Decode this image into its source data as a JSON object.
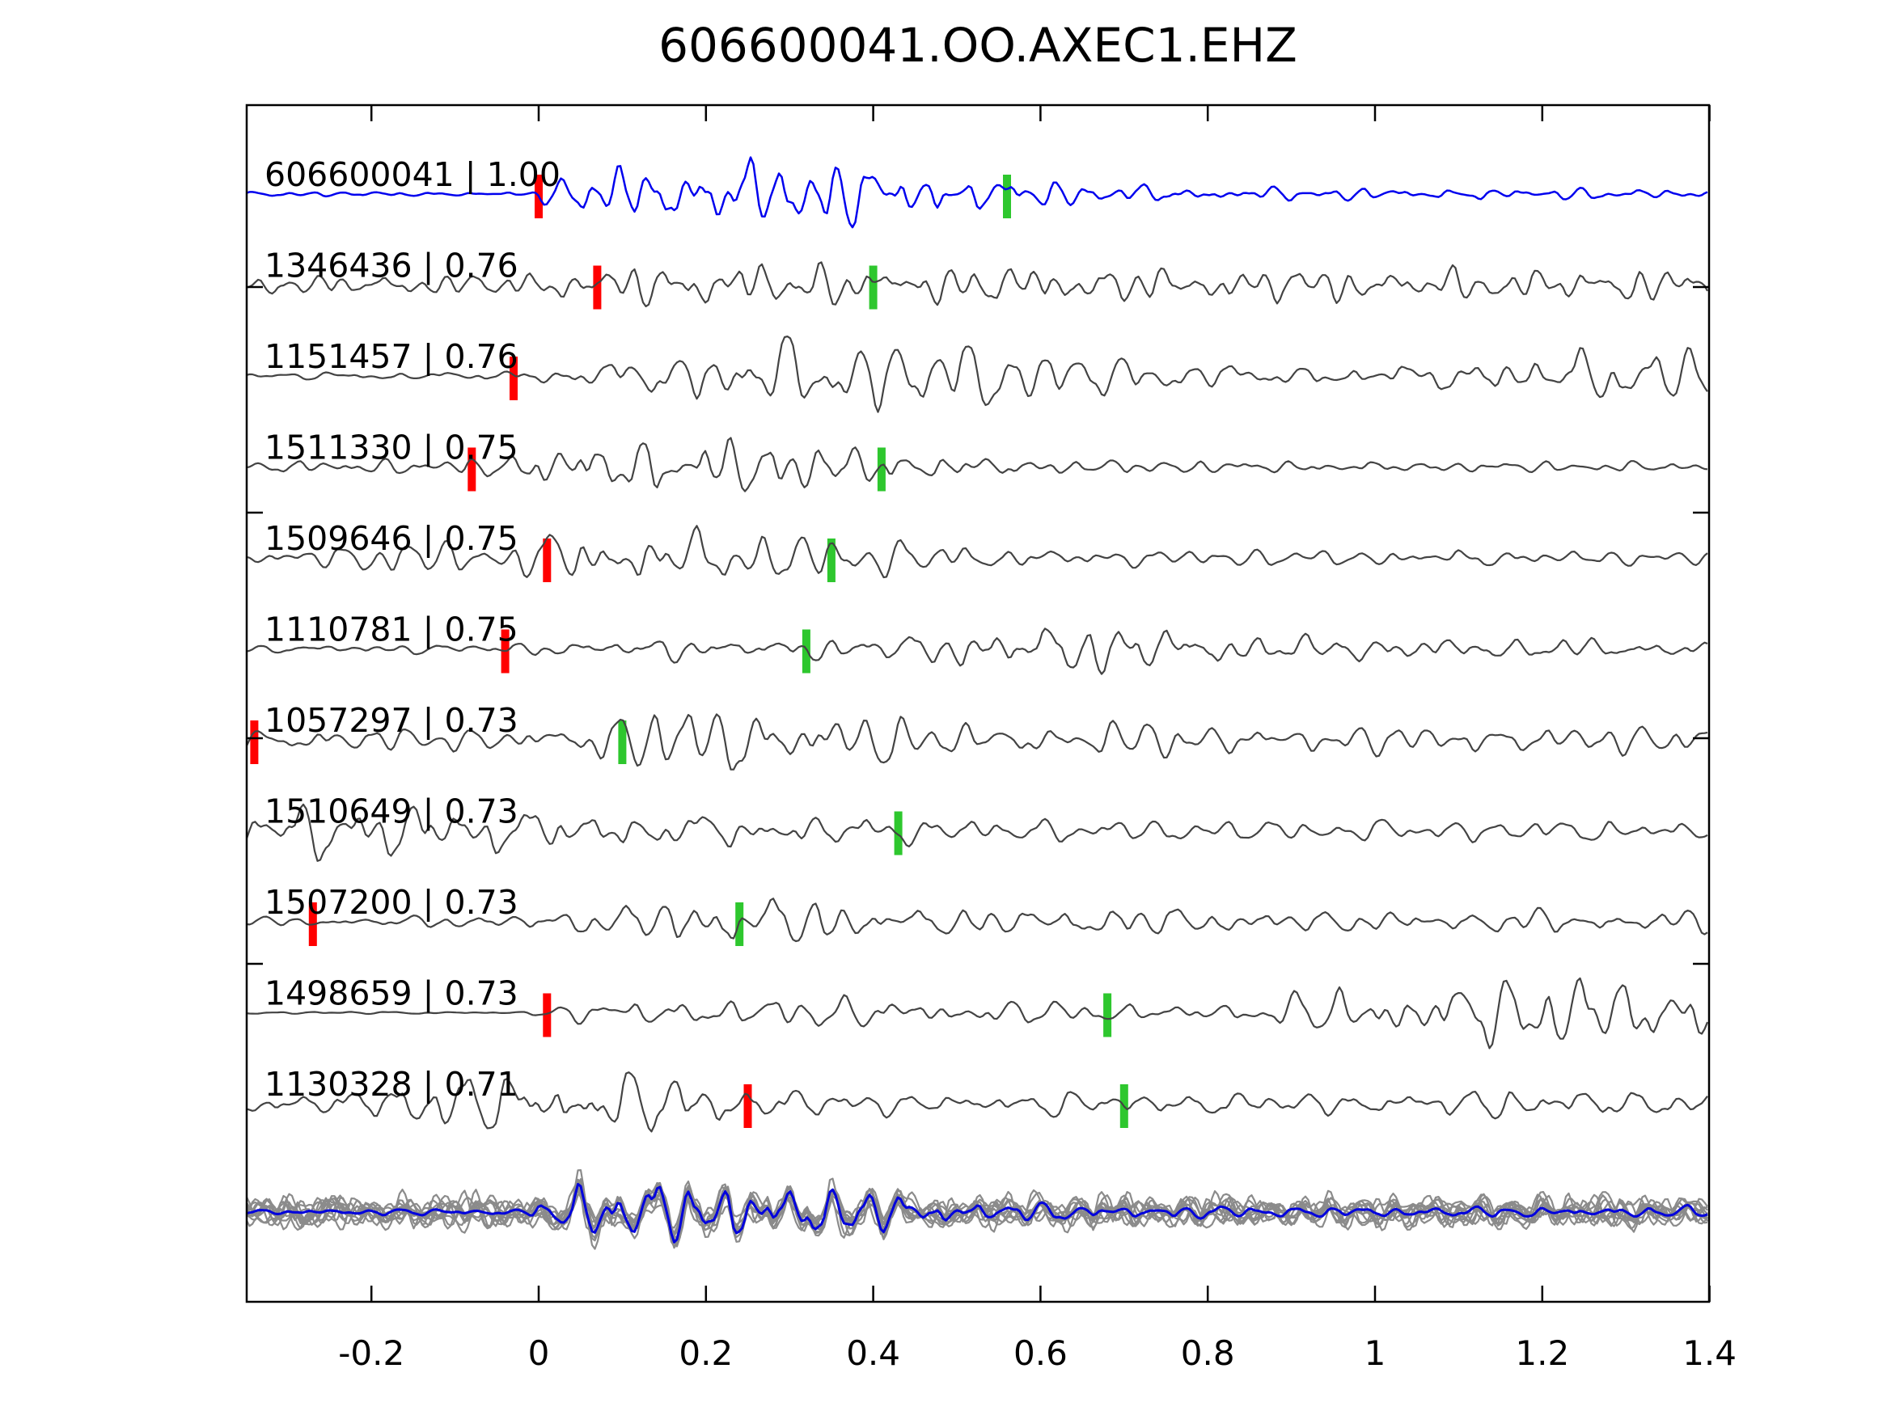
{
  "title": "606600041.OO.AXEC1.EHZ",
  "chart_data": {
    "type": "line",
    "title": "606600041.OO.AXEC1.EHZ",
    "xlabel": "",
    "ylabel": "",
    "x_range": [
      -0.35,
      1.4
    ],
    "grid": false,
    "legend": "none",
    "x_ticks": [
      {
        "value": -0.2,
        "label": "-0.2"
      },
      {
        "value": 0,
        "label": "0"
      },
      {
        "value": 0.2,
        "label": "0.2"
      },
      {
        "value": 0.4,
        "label": "0.4"
      },
      {
        "value": 0.6,
        "label": "0.6"
      },
      {
        "value": 0.8,
        "label": "0.8"
      },
      {
        "value": 1,
        "label": "1"
      },
      {
        "value": 1.2,
        "label": "1.2"
      },
      {
        "value": 1.4,
        "label": "1.4"
      }
    ],
    "colors": {
      "template_trace": "#0000ee",
      "detection_trace": "#434343",
      "overlay_gray": "#8b8b8b",
      "overlay_stack_blue": "#0000dd",
      "pick_red": "#ff0000",
      "pick_green": "#2ec72e",
      "axis": "#000000"
    },
    "traces": [
      {
        "label": "606600041 | 1.00",
        "id": "606600041",
        "correlation": "1.00",
        "is_template": true,
        "red_pick_t": 0.0,
        "green_pick_t": 0.56,
        "waveform": {
          "seed": 11,
          "freq": 27,
          "envelope": [
            [
              -0.35,
              2
            ],
            [
              -0.01,
              2
            ],
            [
              0.03,
              16
            ],
            [
              0.1,
              24
            ],
            [
              0.2,
              30
            ],
            [
              0.3,
              32
            ],
            [
              0.4,
              24
            ],
            [
              0.5,
              18
            ],
            [
              0.58,
              12
            ],
            [
              0.7,
              8
            ],
            [
              0.85,
              6
            ],
            [
              1.0,
              5
            ],
            [
              1.2,
              5
            ],
            [
              1.4,
              4
            ]
          ]
        }
      },
      {
        "label": "1346436 | 0.76",
        "id": "1346436",
        "correlation": "0.76",
        "is_template": false,
        "red_pick_t": 0.07,
        "green_pick_t": 0.4,
        "waveform": {
          "seed": 22,
          "freq": 26,
          "envelope": [
            [
              -0.35,
              9
            ],
            [
              -0.1,
              10
            ],
            [
              0,
              13
            ],
            [
              0.1,
              17
            ],
            [
              0.2,
              22
            ],
            [
              0.3,
              21
            ],
            [
              0.45,
              17
            ],
            [
              0.6,
              19
            ],
            [
              0.75,
              15
            ],
            [
              0.9,
              17
            ],
            [
              1.05,
              15
            ],
            [
              1.2,
              16
            ],
            [
              1.4,
              15
            ]
          ]
        }
      },
      {
        "label": "1151457 | 0.76",
        "id": "1151457",
        "correlation": "0.76",
        "is_template": false,
        "red_pick_t": -0.03,
        "green_pick_t": null,
        "waveform": {
          "seed": 33,
          "freq": 22,
          "envelope": [
            [
              -0.35,
              3
            ],
            [
              -0.08,
              4
            ],
            [
              0.02,
              9
            ],
            [
              0.12,
              16
            ],
            [
              0.22,
              26
            ],
            [
              0.35,
              28
            ],
            [
              0.5,
              26
            ],
            [
              0.62,
              20
            ],
            [
              0.75,
              13
            ],
            [
              0.9,
              9
            ],
            [
              1.05,
              12
            ],
            [
              1.2,
              20
            ],
            [
              1.35,
              24
            ],
            [
              1.4,
              20
            ]
          ]
        }
      },
      {
        "label": "1511330 | 0.75",
        "id": "1511330",
        "correlation": "0.75",
        "is_template": false,
        "red_pick_t": -0.08,
        "green_pick_t": 0.41,
        "waveform": {
          "seed": 44,
          "freq": 25,
          "envelope": [
            [
              -0.35,
              6
            ],
            [
              -0.12,
              7
            ],
            [
              -0.04,
              12
            ],
            [
              0.04,
              28
            ],
            [
              0.15,
              30
            ],
            [
              0.3,
              24
            ],
            [
              0.45,
              14
            ],
            [
              0.6,
              8
            ],
            [
              0.75,
              6
            ],
            [
              0.95,
              6
            ],
            [
              1.15,
              5
            ],
            [
              1.4,
              5
            ]
          ]
        }
      },
      {
        "label": "1509646 | 0.75",
        "id": "1509646",
        "correlation": "0.75",
        "is_template": false,
        "red_pick_t": 0.01,
        "green_pick_t": 0.35,
        "waveform": {
          "seed": 55,
          "freq": 24,
          "envelope": [
            [
              -0.35,
              6
            ],
            [
              -0.22,
              12
            ],
            [
              -0.14,
              18
            ],
            [
              -0.06,
              10
            ],
            [
              0.02,
              26
            ],
            [
              0.1,
              32
            ],
            [
              0.2,
              28
            ],
            [
              0.33,
              20
            ],
            [
              0.45,
              15
            ],
            [
              0.6,
              10
            ],
            [
              0.75,
              8
            ],
            [
              0.95,
              7
            ],
            [
              1.1,
              9
            ],
            [
              1.25,
              7
            ],
            [
              1.4,
              6
            ]
          ]
        }
      },
      {
        "label": "1110781 | 0.75",
        "id": "1110781",
        "correlation": "0.75",
        "is_template": false,
        "red_pick_t": -0.04,
        "green_pick_t": 0.32,
        "waveform": {
          "seed": 66,
          "freq": 25,
          "envelope": [
            [
              -0.35,
              4
            ],
            [
              -0.1,
              5
            ],
            [
              0,
              7
            ],
            [
              0.1,
              10
            ],
            [
              0.25,
              11
            ],
            [
              0.4,
              12
            ],
            [
              0.52,
              20
            ],
            [
              0.62,
              28
            ],
            [
              0.72,
              24
            ],
            [
              0.85,
              15
            ],
            [
              1.0,
              12
            ],
            [
              1.15,
              11
            ],
            [
              1.3,
              10
            ],
            [
              1.4,
              9
            ]
          ]
        }
      },
      {
        "label": "1057297 | 0.73",
        "id": "1057297",
        "correlation": "0.73",
        "is_template": false,
        "red_pick_t": -0.34,
        "green_pick_t": 0.1,
        "waveform": {
          "seed": 77,
          "freq": 24,
          "envelope": [
            [
              -0.35,
              10
            ],
            [
              -0.22,
              12
            ],
            [
              -0.12,
              9
            ],
            [
              -0.02,
              12
            ],
            [
              0.06,
              18
            ],
            [
              0.15,
              30
            ],
            [
              0.25,
              32
            ],
            [
              0.35,
              26
            ],
            [
              0.47,
              17
            ],
            [
              0.6,
              13
            ],
            [
              0.72,
              17
            ],
            [
              0.85,
              13
            ],
            [
              1.0,
              12
            ],
            [
              1.15,
              13
            ],
            [
              1.3,
              12
            ],
            [
              1.4,
              12
            ]
          ]
        }
      },
      {
        "label": "1510649 | 0.73",
        "id": "1510649",
        "correlation": "0.73",
        "is_template": false,
        "red_pick_t": null,
        "green_pick_t": 0.43,
        "waveform": {
          "seed": 88,
          "freq": 21,
          "envelope": [
            [
              -0.35,
              24
            ],
            [
              -0.27,
              32
            ],
            [
              -0.18,
              36
            ],
            [
              -0.08,
              28
            ],
            [
              0.02,
              26
            ],
            [
              0.12,
              22
            ],
            [
              0.25,
              19
            ],
            [
              0.4,
              16
            ],
            [
              0.55,
              12
            ],
            [
              0.7,
              11
            ],
            [
              0.85,
              10
            ],
            [
              1.0,
              10
            ],
            [
              1.15,
              11
            ],
            [
              1.3,
              11
            ],
            [
              1.4,
              10
            ]
          ]
        }
      },
      {
        "label": "1507200 | 0.73",
        "id": "1507200",
        "correlation": "0.73",
        "is_template": false,
        "red_pick_t": -0.27,
        "green_pick_t": 0.24,
        "waveform": {
          "seed": 99,
          "freq": 24,
          "envelope": [
            [
              -0.35,
              4
            ],
            [
              -0.2,
              5
            ],
            [
              -0.08,
              6
            ],
            [
              0.02,
              9
            ],
            [
              0.12,
              18
            ],
            [
              0.22,
              26
            ],
            [
              0.32,
              22
            ],
            [
              0.42,
              15
            ],
            [
              0.55,
              12
            ],
            [
              0.68,
              15
            ],
            [
              0.8,
              12
            ],
            [
              0.95,
              10
            ],
            [
              1.1,
              10
            ],
            [
              1.25,
              12
            ],
            [
              1.4,
              10
            ]
          ]
        }
      },
      {
        "label": "1498659 | 0.73",
        "id": "1498659",
        "correlation": "0.73",
        "is_template": false,
        "red_pick_t": 0.01,
        "green_pick_t": 0.68,
        "waveform": {
          "seed": 110,
          "freq": 22,
          "envelope": [
            [
              -0.35,
              1
            ],
            [
              -0.02,
              1
            ],
            [
              0.04,
              7
            ],
            [
              0.15,
              11
            ],
            [
              0.3,
              13
            ],
            [
              0.45,
              11
            ],
            [
              0.6,
              9
            ],
            [
              0.75,
              7
            ],
            [
              0.85,
              8
            ],
            [
              0.92,
              16
            ],
            [
              1.0,
              22
            ],
            [
              1.1,
              25
            ],
            [
              1.2,
              32
            ],
            [
              1.3,
              28
            ],
            [
              1.4,
              25
            ]
          ]
        }
      },
      {
        "label": "1130328 | 0.71",
        "id": "1130328",
        "correlation": "0.71",
        "is_template": false,
        "red_pick_t": 0.25,
        "green_pick_t": 0.7,
        "waveform": {
          "seed": 121,
          "freq": 23,
          "envelope": [
            [
              -0.35,
              8
            ],
            [
              -0.27,
              10
            ],
            [
              -0.17,
              20
            ],
            [
              -0.07,
              28
            ],
            [
              0.03,
              30
            ],
            [
              0.13,
              28
            ],
            [
              0.23,
              20
            ],
            [
              0.33,
              13
            ],
            [
              0.45,
              9
            ],
            [
              0.6,
              11
            ],
            [
              0.75,
              11
            ],
            [
              0.9,
              10
            ],
            [
              1.05,
              11
            ],
            [
              1.18,
              15
            ],
            [
              1.3,
              13
            ],
            [
              1.4,
              10
            ]
          ]
        }
      }
    ],
    "overlay": {
      "description": "all detections aligned, gray, with blue stack on top",
      "gray_count": 11,
      "coherence": 0.85,
      "stack": {
        "seed": 7,
        "freq": 26,
        "envelope": [
          [
            -0.35,
            3
          ],
          [
            -0.02,
            3
          ],
          [
            0.04,
            24
          ],
          [
            0.12,
            30
          ],
          [
            0.22,
            28
          ],
          [
            0.32,
            25
          ],
          [
            0.42,
            18
          ],
          [
            0.52,
            10
          ],
          [
            0.65,
            7
          ],
          [
            0.8,
            6
          ],
          [
            1.0,
            5
          ],
          [
            1.2,
            5
          ],
          [
            1.4,
            5
          ]
        ]
      },
      "gray_noise_envelope": [
        [
          -0.35,
          15
        ],
        [
          0,
          15
        ],
        [
          0.3,
          13
        ],
        [
          0.6,
          14
        ],
        [
          1.0,
          14
        ],
        [
          1.4,
          14
        ]
      ]
    }
  }
}
